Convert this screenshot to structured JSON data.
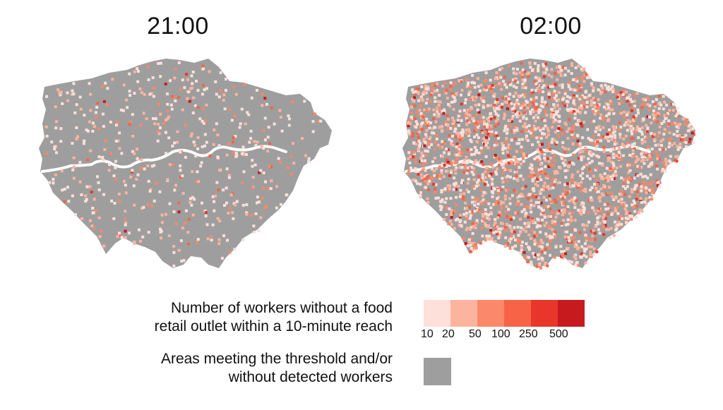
{
  "maps": [
    {
      "title": "21:00"
    },
    {
      "title": "02:00"
    }
  ],
  "legend": {
    "color_label": {
      "line1": "Number of workers without a food",
      "line2": "retail outlet within a 10-minute reach"
    },
    "gray_label": {
      "line1": "Areas meeting the threshold and/or",
      "line2": "without detected workers"
    },
    "colors": [
      "#fde0d9",
      "#fcb49f",
      "#fb8868",
      "#f66346",
      "#e8362b",
      "#c61a1f"
    ],
    "ticks": [
      "10",
      "20",
      "50",
      "100",
      "250",
      "500"
    ],
    "gray_color": "#9e9e9e"
  },
  "river_color": "#ffffff"
}
